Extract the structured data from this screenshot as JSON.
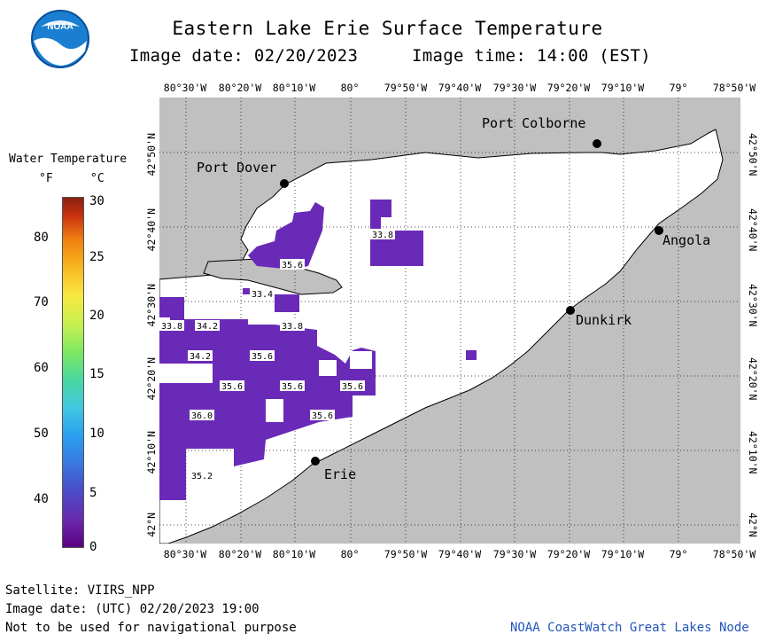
{
  "header": {
    "title": "Eastern Lake Erie Surface Temperature",
    "image_date": "Image date: 02/20/2023",
    "image_time": "Image time: 14:00 (EST)"
  },
  "logo": {
    "text": "NOAA"
  },
  "legend": {
    "title": "Water Temperature",
    "unit_f": "°F",
    "unit_c": "°C",
    "ticks_f": [
      "80",
      "70",
      "60",
      "50",
      "40"
    ],
    "ticks_c": [
      "30",
      "25",
      "20",
      "15",
      "10",
      "5",
      "0"
    ]
  },
  "axes": {
    "lon_labels": [
      "80°30'W",
      "80°20'W",
      "80°10'W",
      "80°",
      "79°50'W",
      "79°40'W",
      "79°30'W",
      "79°20'W",
      "79°10'W",
      "79°",
      "78°50'W"
    ],
    "lat_labels_left": [
      "42°50'N",
      "42°40'N",
      "42°30'N",
      "42°20'N",
      "42°10'N",
      "42°N"
    ],
    "lat_labels_right": [
      "42°50'N",
      "42°40'N",
      "42°30'N",
      "42°20'N",
      "42°10'N",
      "42°N"
    ]
  },
  "cities": {
    "port_colborne": "Port Colborne",
    "port_dover": "Port Dover",
    "angola": "Angola",
    "dunkirk": "Dunkirk",
    "erie": "Erie"
  },
  "temperature_labels": {
    "t1": "33.8",
    "t2": "35.6",
    "t3": "33.4",
    "t4": "33.8",
    "t5": "34.2",
    "t6": "33.8",
    "t7": "34.2",
    "t8": "35.6",
    "t9": "35.6",
    "t10": "35.6",
    "t11": "35.6",
    "t12": "36.0",
    "t13": "35.6",
    "t14": "35.2"
  },
  "footer": {
    "satellite": "Satellite: VIIRS_NPP",
    "utc_date": "Image date: (UTC) 02/20/2023  19:00",
    "disclaimer": "Not to be used for navigational purpose",
    "credit": "NOAA CoastWatch Great Lakes Node"
  },
  "colors": {
    "land": "#c0c0c0",
    "water": "#ffffff",
    "cold_water": "#6a2ab8",
    "coldest_water": "#5a1a9a",
    "credit": "#2255bb"
  }
}
